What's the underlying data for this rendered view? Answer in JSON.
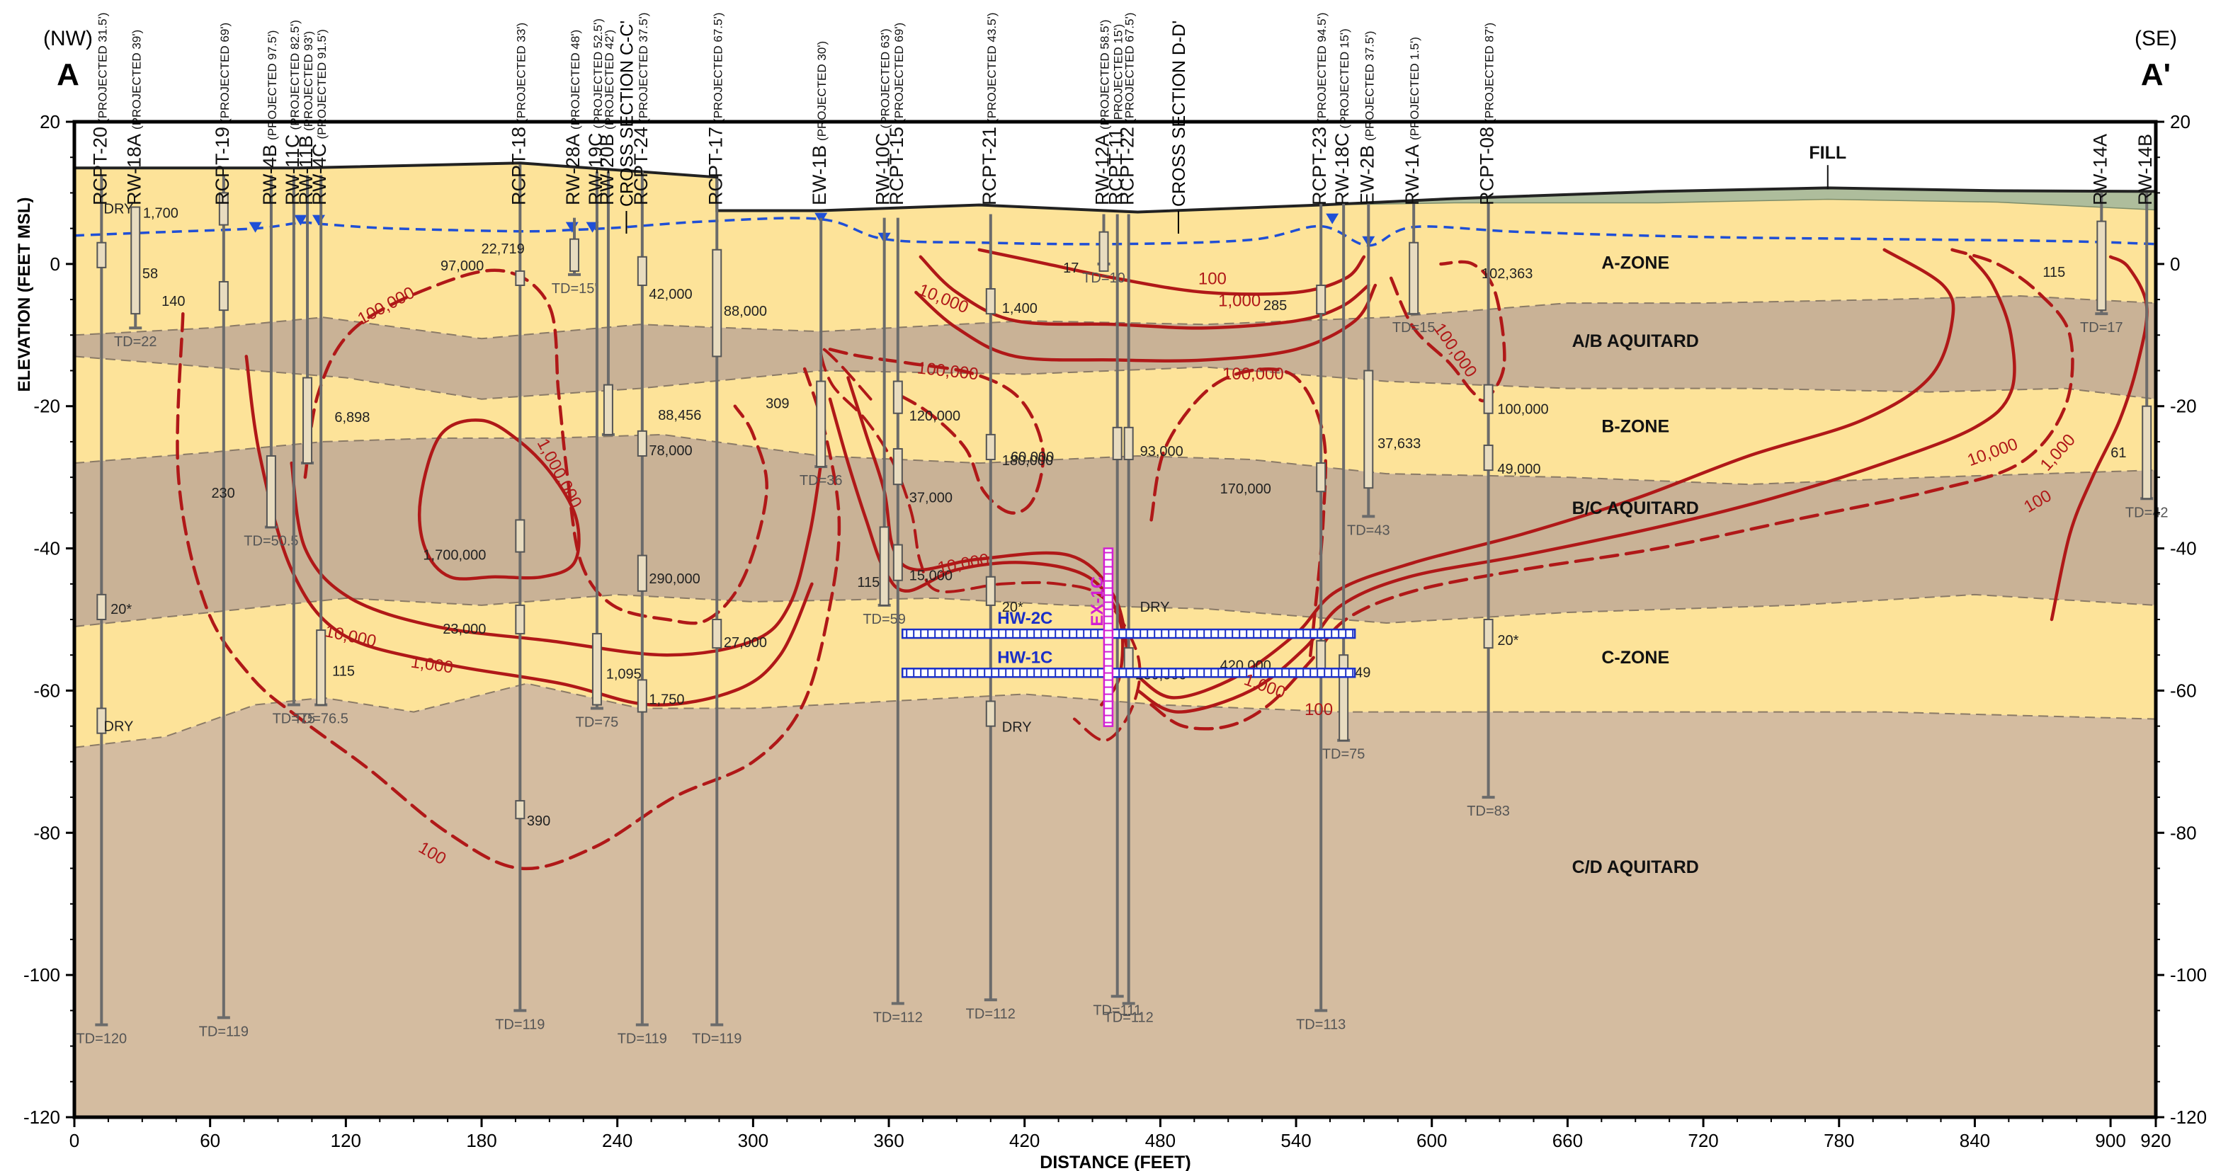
{
  "header": {
    "left_direction": "(NW)",
    "left_label": "A",
    "right_direction": "(SE)",
    "right_label": "A'"
  },
  "axes": {
    "y_label": "ELEVATION (FEET MSL)",
    "x_label": "DISTANCE (FEET)",
    "y_range": [
      -120,
      20
    ],
    "y_ticks": [
      20,
      0,
      -20,
      -40,
      -60,
      -80,
      -100,
      -120
    ],
    "y_tick_labels": [
      "20",
      "0",
      "-20",
      "-40",
      "-60",
      "-80",
      "-100",
      "-120"
    ],
    "x_range": [
      0,
      920
    ],
    "x_ticks": [
      0,
      60,
      120,
      180,
      240,
      300,
      360,
      420,
      480,
      540,
      600,
      660,
      720,
      780,
      840,
      900,
      920
    ],
    "x_tick_labels": [
      "0",
      "60",
      "120",
      "180",
      "240",
      "300",
      "360",
      "420",
      "480",
      "540",
      "600",
      "660",
      "720",
      "780",
      "840",
      "900",
      "920"
    ]
  },
  "colors": {
    "fill": "#aebd9c",
    "a_zone": "#fde399",
    "ab_aquitard": "#c9b296",
    "b_zone": "#fde399",
    "bc_aquitard": "#c9b296",
    "c_zone": "#fde399",
    "cd_aquitard": "#d4bca0",
    "water_table": "#1f4fd6",
    "contour": "#b01818",
    "well": "#6b6b6b",
    "well_label": "#111111",
    "horizontal_well": "#1a2fc8",
    "ex_well": "#d21fd2"
  },
  "unit_labels": [
    {
      "text": "FILL",
      "x": 775,
      "y": 15.5
    },
    {
      "text": "A-ZONE",
      "x": 690,
      "y": 0
    },
    {
      "text": "A/B AQUITARD",
      "x": 690,
      "y": -11
    },
    {
      "text": "B-ZONE",
      "x": 690,
      "y": -23
    },
    {
      "text": "B/C AQUITARD",
      "x": 690,
      "y": -34.5
    },
    {
      "text": "C-ZONE",
      "x": 690,
      "y": -55.5
    },
    {
      "text": "C/D AQUITARD",
      "x": 690,
      "y": -85
    }
  ],
  "wells": [
    {
      "name": "RCPT-20",
      "note": "(PROJECTED 31.5')",
      "x": 12,
      "top": 12.5,
      "bottom": -107,
      "td": "TD=120",
      "screens": [
        {
          "top": 3,
          "bot": -0.5
        },
        {
          "top": -46.5,
          "bot": -50
        },
        {
          "top": -62.5,
          "bot": -66
        }
      ],
      "values": [
        {
          "text": "DRY",
          "dx": 1,
          "y": 7.8
        },
        {
          "text": "20*",
          "dx": 4,
          "y": -48.5
        },
        {
          "text": "DRY",
          "dx": 1,
          "y": -65
        }
      ]
    },
    {
      "name": "RW-18A",
      "note": "(PROJECTED 39')",
      "x": 27,
      "top": 8,
      "bottom": -9,
      "td": "TD=22",
      "screens": [
        {
          "top": 8,
          "bot": -7
        }
      ],
      "values": [
        {
          "text": "58",
          "dx": 3,
          "y": -1.3
        }
      ]
    },
    {
      "name": "RCPT-19",
      "note": "(PROJECTED 69')",
      "x": 66,
      "top": 12.5,
      "bottom": -106,
      "td": "TD=119",
      "screens": [
        {
          "top": 10,
          "bot": 5.5
        },
        {
          "top": -2.5,
          "bot": -6.5
        }
      ],
      "values": [
        {
          "text": "1,700",
          "dx": -20,
          "y": 7.2
        },
        {
          "text": "140",
          "dx": -17,
          "y": -5.2
        }
      ]
    },
    {
      "name": "RW-4B",
      "note": "(PROJECTED 97.5')",
      "x": 87,
      "top": 12.5,
      "bottom": -37,
      "td": "TD=50.5",
      "screens": [
        {
          "top": -27,
          "bot": -37
        }
      ],
      "values": [
        {
          "text": "230",
          "dx": -16,
          "y": -32.2
        }
      ]
    },
    {
      "name": "RW-11C",
      "note": "(PROJECTED 82.5')",
      "x": 97,
      "top": 12.5,
      "bottom": -62,
      "td": "TD=75",
      "screens": [],
      "values": []
    },
    {
      "name": "RW-11B",
      "note": "(PROJECTED 93')",
      "x": 103,
      "top": 12.5,
      "bottom": -28,
      "td": "",
      "screens": [
        {
          "top": -16,
          "bot": -28
        }
      ],
      "values": [
        {
          "text": "6,898",
          "dx": 12,
          "y": -21.5
        }
      ]
    },
    {
      "name": "RW-4C",
      "note": "(PROJECTED 91.5')",
      "x": 109,
      "top": 12.5,
      "bottom": -62,
      "td": "TD=76.5",
      "screens": [
        {
          "top": -51.5,
          "bot": -62
        }
      ],
      "values": [
        {
          "text": "115",
          "dx": 5,
          "y": -57.2
        }
      ]
    },
    {
      "name": "RCPT-18",
      "note": "(PROJECTED 33')",
      "x": 197,
      "top": 14,
      "bottom": -105,
      "td": "TD=119",
      "screens": [
        {
          "top": -1,
          "bot": -3
        },
        {
          "top": -36,
          "bot": -40.5
        },
        {
          "top": -48,
          "bot": -52
        },
        {
          "top": -75.5,
          "bot": -78
        }
      ],
      "values": [
        {
          "text": "97,000",
          "dx": -16,
          "y": -0.2
        },
        {
          "text": "1,700,000",
          "dx": -15,
          "y": -40.9
        },
        {
          "text": "23,000",
          "dx": -15,
          "y": -51.3
        },
        {
          "text": "390",
          "dx": 3,
          "y": -78.3
        }
      ]
    },
    {
      "name": "RW-28A",
      "note": "(PROJECTED 48')",
      "x": 221,
      "top": 6.5,
      "bottom": -1.5,
      "td": "TD=15'",
      "screens": [
        {
          "top": 3.5,
          "bot": -1
        }
      ],
      "values": [
        {
          "text": "22,719",
          "dx": -22,
          "y": 2.2
        }
      ]
    },
    {
      "name": "RW-19C",
      "note": "(PROJECTED 52.5')",
      "x": 231,
      "top": 13,
      "bottom": -62.5,
      "td": "TD=75",
      "screens": [
        {
          "top": -52,
          "bot": -62
        }
      ],
      "values": [
        {
          "text": "1,095",
          "dx": 4,
          "y": -57.6
        }
      ]
    },
    {
      "name": "RW-20B",
      "note": "(PROJECTED 42')",
      "x": 236,
      "top": 13,
      "bottom": -24,
      "td": "",
      "screens": [
        {
          "top": -17,
          "bot": -24
        }
      ],
      "values": [
        {
          "text": "88,456",
          "dx": 22,
          "y": -21.2
        }
      ]
    },
    {
      "name": "RCPT-24",
      "note": "(PROJECTED 37.5')",
      "x": 251,
      "top": 13,
      "bottom": -107,
      "td": "TD=119",
      "screens": [
        {
          "top": 1,
          "bot": -3
        },
        {
          "top": -23.5,
          "bot": -27
        },
        {
          "top": -41,
          "bot": -46
        },
        {
          "top": -58.5,
          "bot": -63
        }
      ],
      "values": [
        {
          "text": "42,000",
          "dx": 3,
          "y": -4.2
        },
        {
          "text": "78,000",
          "dx": 3,
          "y": -26.2
        },
        {
          "text": "290,000",
          "dx": 3,
          "y": -44.2
        },
        {
          "text": "1,750",
          "dx": 3,
          "y": -61.2
        }
      ]
    },
    {
      "name": "RCPT-17",
      "note": "(PROJECTED 67.5')",
      "x": 284,
      "top": 12,
      "bottom": -107,
      "td": "TD=119",
      "screens": [
        {
          "top": 2,
          "bot": -13
        },
        {
          "top": -50,
          "bot": -54
        }
      ],
      "values": [
        {
          "text": "88,000",
          "dx": 3,
          "y": -6.6
        },
        {
          "text": "27,000",
          "dx": 3,
          "y": -53.2
        }
      ]
    },
    {
      "name": "EW-1B",
      "note": "(PROJECTED 30')",
      "x": 330,
      "top": 6.5,
      "bottom": -28.5,
      "td": "TD=36",
      "screens": [
        {
          "top": -16.5,
          "bot": -28.5
        }
      ],
      "values": [
        {
          "text": "309",
          "dx": -14,
          "y": -19.6
        },
        {
          "text": "115",
          "dx": 16,
          "y": -44.7
        }
      ]
    },
    {
      "name": "RW-10C",
      "note": "(PROJECTED 63')",
      "x": 358,
      "top": 6.5,
      "bottom": -48,
      "td": "TD=59",
      "screens": [
        {
          "top": -37,
          "bot": -48
        }
      ],
      "values": []
    },
    {
      "name": "RCPT-15",
      "note": "(PROJECTED 69')",
      "x": 364,
      "top": 6.5,
      "bottom": -104,
      "td": "TD=112",
      "screens": [
        {
          "top": -16.5,
          "bot": -21
        },
        {
          "top": -26,
          "bot": -31
        },
        {
          "top": -39.5,
          "bot": -44.5
        }
      ],
      "values": [
        {
          "text": "120,000",
          "dx": 5,
          "y": -21.3
        },
        {
          "text": "37,000",
          "dx": 5,
          "y": -32.8
        },
        {
          "text": "15,000",
          "dx": 5,
          "y": -43.8
        }
      ]
    },
    {
      "name": "RCPT-21",
      "note": "(PROJECTED 43.5')",
      "x": 405,
      "top": 7,
      "bottom": -103.5,
      "td": "TD=112",
      "screens": [
        {
          "top": -3.5,
          "bot": -7
        },
        {
          "top": -24,
          "bot": -27.5
        },
        {
          "top": -44,
          "bot": -48
        },
        {
          "top": -61.5,
          "bot": -65
        }
      ],
      "values": [
        {
          "text": "1,400",
          "dx": 5,
          "y": -6.2
        },
        {
          "text": "180,000",
          "dx": 5,
          "y": -27.6
        },
        {
          "text": "20*",
          "dx": 5,
          "y": -48.2
        },
        {
          "text": "DRY",
          "dx": 5,
          "y": -65.1
        }
      ]
    },
    {
      "name": "RW-12A",
      "note": "(PROJECTED 58.5')",
      "x": 455,
      "top": 7,
      "bottom": 0,
      "td": "TD=10",
      "screens": [
        {
          "top": 4.5,
          "bot": -1
        }
      ],
      "values": [
        {
          "text": "17",
          "dx": -11,
          "y": -0.5
        }
      ]
    },
    {
      "name": "RCPT-11",
      "note": "(PROJECTED 15')",
      "x": 461,
      "top": 7,
      "bottom": -103,
      "td": "TD=111",
      "screens": [
        {
          "top": -23,
          "bot": -27.5
        }
      ],
      "values": [
        {
          "text": "60,000",
          "dx": -28,
          "y": -27.1
        }
      ]
    },
    {
      "name": "RCPT-22",
      "note": "(PROJECTED 67.5')",
      "x": 466,
      "top": 7,
      "bottom": -104,
      "td": "TD=112",
      "screens": [
        {
          "top": -23,
          "bot": -27.5
        },
        {
          "top": -54,
          "bot": -58
        }
      ],
      "values": [
        {
          "text": "93,000",
          "dx": 5,
          "y": -26.3
        },
        {
          "text": "230,000",
          "dx": 3,
          "y": -57.7
        },
        {
          "text": "DRY",
          "dx": 5,
          "y": -48.2
        }
      ]
    },
    {
      "name": "RCPT-23",
      "note": "(PROJECTED 94.5')",
      "x": 551,
      "top": 8.5,
      "bottom": -105,
      "td": "TD=113",
      "screens": [
        {
          "top": -3,
          "bot": -7
        },
        {
          "top": -28,
          "bot": -32
        },
        {
          "top": -53,
          "bot": -58
        }
      ],
      "values": [
        {
          "text": "285",
          "dx": -15,
          "y": -5.8
        },
        {
          "text": "170,000",
          "dx": -22,
          "y": -31.6
        },
        {
          "text": "420,000",
          "dx": -22,
          "y": -56.4
        }
      ]
    },
    {
      "name": "RW-18C",
      "note": "(PROJECTED 15')",
      "x": 561,
      "top": 8.5,
      "bottom": -67,
      "td": "TD=75",
      "screens": [
        {
          "top": -55,
          "bot": -67
        }
      ],
      "values": [
        {
          "text": "49",
          "dx": 5,
          "y": -57.4
        }
      ]
    },
    {
      "name": "EW-2B",
      "note": "(PROJECTED 37.5')",
      "x": 572,
      "top": 8.5,
      "bottom": -35.5,
      "td": "TD=43",
      "screens": [
        {
          "top": -15,
          "bot": -31.5
        }
      ],
      "values": [
        {
          "text": "37,633",
          "dx": 4,
          "y": -25.2
        }
      ]
    },
    {
      "name": "RW-1A",
      "note": "(PROJECTED 1.5')",
      "x": 592,
      "top": 8.5,
      "bottom": -7,
      "td": "TD=15",
      "screens": [
        {
          "top": 3,
          "bot": -7
        }
      ],
      "values": [
        {
          "text": "102,363",
          "dx": 30,
          "y": -1.3
        }
      ]
    },
    {
      "name": "RCPT-08",
      "note": "(PROJECTED 87')",
      "x": 625,
      "top": 8.5,
      "bottom": -75,
      "td": "TD=83",
      "screens": [
        {
          "top": -17,
          "bot": -21
        },
        {
          "top": -25.5,
          "bot": -29
        },
        {
          "top": -50,
          "bot": -54
        }
      ],
      "values": [
        {
          "text": "100,000",
          "dx": 4,
          "y": -20.4
        },
        {
          "text": "49,000",
          "dx": 4,
          "y": -28.8
        },
        {
          "text": "20*",
          "dx": 4,
          "y": -52.9
        }
      ]
    },
    {
      "name": "RW-14A",
      "note": "",
      "x": 896,
      "top": 10,
      "bottom": -7,
      "td": "TD=17",
      "screens": [
        {
          "top": 6,
          "bot": -6.5
        }
      ],
      "values": [
        {
          "text": "115",
          "dx": -16,
          "y": -1.1
        }
      ]
    },
    {
      "name": "RW-14B",
      "note": "",
      "x": 916,
      "top": 10,
      "bottom": -33,
      "td": "TD=42",
      "screens": [
        {
          "top": -20,
          "bot": -33
        }
      ],
      "values": [
        {
          "text": "61",
          "dx": -9,
          "y": -26.5
        }
      ]
    }
  ],
  "section_markers": [
    {
      "text": "CROSS SECTION C-C'",
      "x": 244
    },
    {
      "text": "CROSS SECTION D-D'",
      "x": 488
    }
  ],
  "horizontal_wells": [
    {
      "name": "HW-2C",
      "y": -52,
      "x1": 366,
      "x2": 566
    },
    {
      "name": "HW-1C",
      "y": -57.5,
      "x1": 366,
      "x2": 566
    }
  ],
  "ex_well": {
    "name": "EX-1C",
    "x": 457,
    "y_top": -40,
    "y_bot": -65
  },
  "contour_labels": [
    {
      "text": "100,000",
      "x": 138,
      "y": -6,
      "rot": -28
    },
    {
      "text": "1,000,000",
      "x": 214,
      "y": -29.5,
      "rot": 62
    },
    {
      "text": "10,000",
      "x": 122,
      "y": -52.5,
      "rot": 12
    },
    {
      "text": "1,000",
      "x": 158,
      "y": -56.5,
      "rot": 8
    },
    {
      "text": "100",
      "x": 158,
      "y": -83,
      "rot": 30
    },
    {
      "text": "10,000",
      "x": 384,
      "y": -5,
      "rot": 22
    },
    {
      "text": "100,000",
      "x": 386,
      "y": -15.2,
      "rot": 6
    },
    {
      "text": "10,000",
      "x": 393,
      "y": -42.3,
      "rot": -10
    },
    {
      "text": "100",
      "x": 503,
      "y": -2.2,
      "rot": 0
    },
    {
      "text": "1,000",
      "x": 515,
      "y": -5.3,
      "rot": 0
    },
    {
      "text": "100,000",
      "x": 521,
      "y": -15.6,
      "rot": 0
    },
    {
      "text": "100,000",
      "x": 610,
      "y": -12.2,
      "rot": 55
    },
    {
      "text": "1,000",
      "x": 526,
      "y": -59.5,
      "rot": 20
    },
    {
      "text": "100",
      "x": 550,
      "y": -62.8,
      "rot": 0
    },
    {
      "text": "10,000",
      "x": 848,
      "y": -26.6,
      "rot": -20
    },
    {
      "text": "1,000",
      "x": 877,
      "y": -26.6,
      "rot": -48
    },
    {
      "text": "100",
      "x": 868,
      "y": -33.5,
      "rot": -30
    }
  ]
}
